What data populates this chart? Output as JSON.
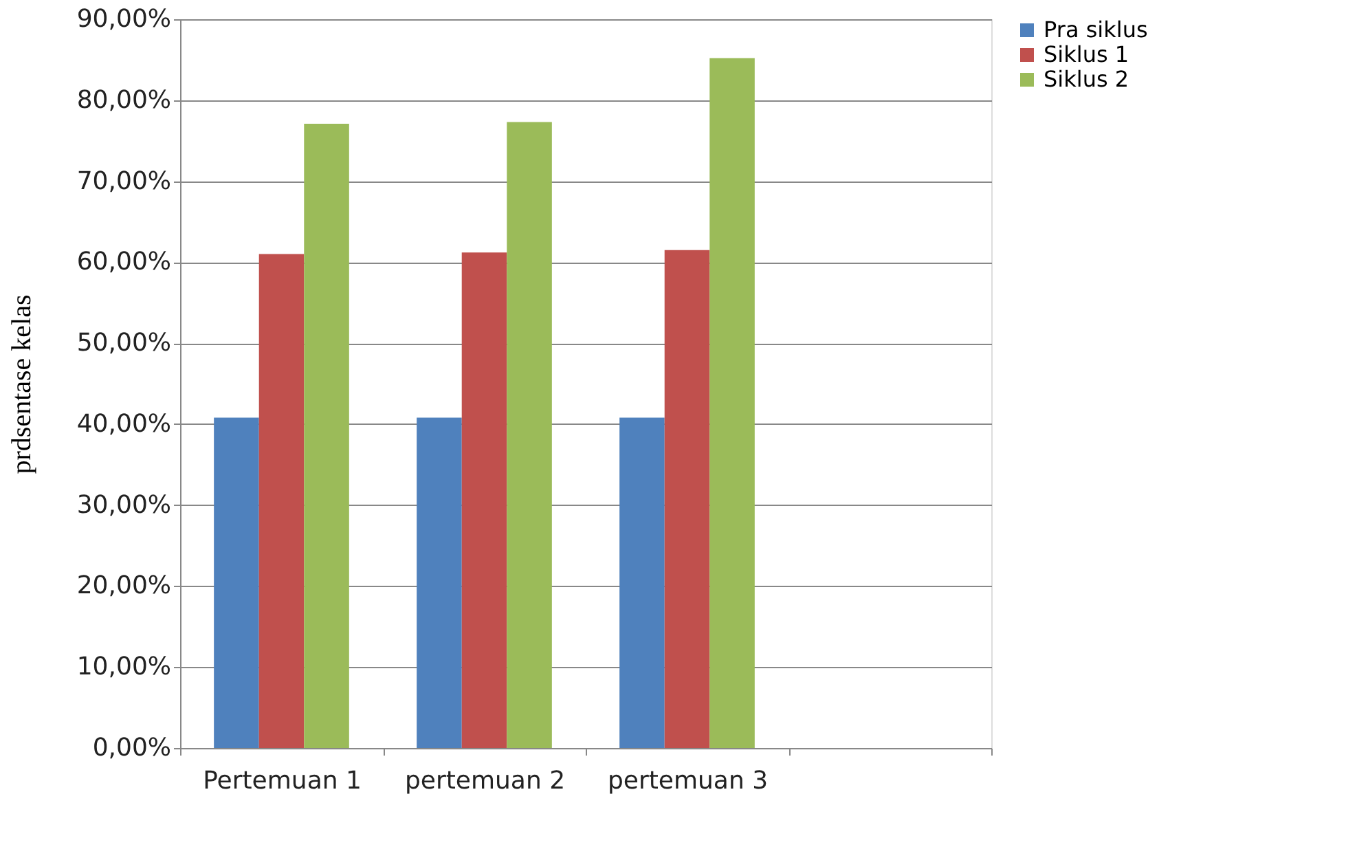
{
  "chart_data": {
    "type": "bar",
    "ylabel": "prdsentase kelas",
    "categories": [
      "Pertemuan 1",
      "pertemuan 2",
      "pertemuan 3",
      null
    ],
    "series": [
      {
        "name": "Pra siklus",
        "color": "#4f81bd",
        "values": [
          40.8,
          40.8,
          40.8,
          null
        ]
      },
      {
        "name": "Siklus 1",
        "color": "#c0504d",
        "values": [
          61.0,
          61.2,
          61.5,
          null
        ]
      },
      {
        "name": "Siklus 2",
        "color": "#9bbb59",
        "values": [
          77.1,
          77.3,
          85.2,
          null
        ]
      }
    ],
    "ylim": [
      0,
      90
    ],
    "yticks": [
      {
        "value": 0,
        "label": "0,00%"
      },
      {
        "value": 10,
        "label": "10,00%"
      },
      {
        "value": 20,
        "label": "20,00%"
      },
      {
        "value": 30,
        "label": "30,00%"
      },
      {
        "value": 40,
        "label": "40,00%"
      },
      {
        "value": 50,
        "label": "50,00%"
      },
      {
        "value": 60,
        "label": "60,00%"
      },
      {
        "value": 70,
        "label": "70,00%"
      },
      {
        "value": 80,
        "label": "80,00%"
      },
      {
        "value": 90,
        "label": "90,00%"
      }
    ],
    "grid": "y",
    "legend": "right"
  }
}
